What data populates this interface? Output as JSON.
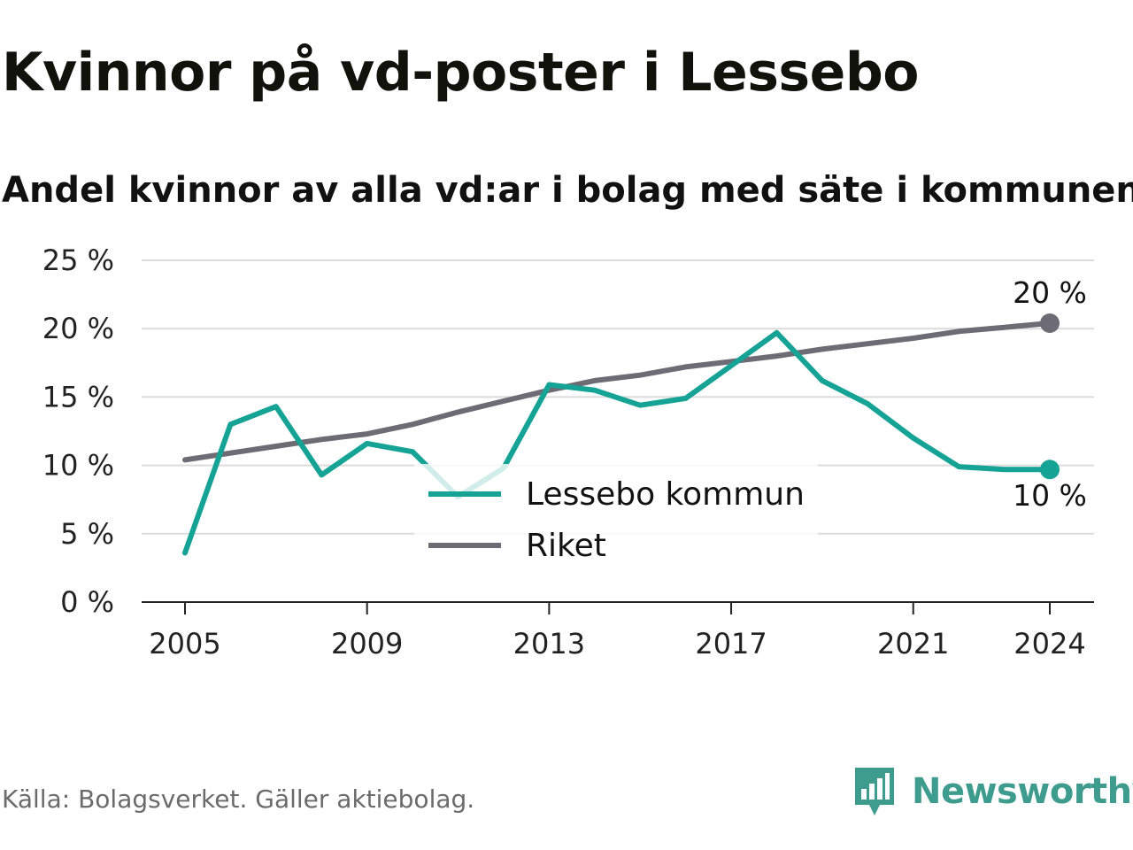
{
  "title": "Kvinnor på vd-poster i Lessebo",
  "subtitle": "Andel kvinnor av alla vd:ar i bolag med säte i kommunen",
  "source": "Källa: Bolagsverket. Gäller aktiebolag.",
  "brand": "Newsworthy",
  "chart_data": {
    "type": "line",
    "x": [
      2005,
      2006,
      2007,
      2008,
      2009,
      2010,
      2011,
      2012,
      2013,
      2014,
      2015,
      2016,
      2017,
      2018,
      2019,
      2020,
      2021,
      2022,
      2023,
      2024
    ],
    "x_ticks": [
      2005,
      2009,
      2013,
      2017,
      2021,
      2024
    ],
    "y_ticks": [
      0,
      5,
      10,
      15,
      20,
      25
    ],
    "y_tick_labels": [
      "0 %",
      "5 %",
      "10 %",
      "15 %",
      "20 %",
      "25 %"
    ],
    "ylim": [
      0,
      25
    ],
    "grid": true,
    "legend_position": "center",
    "series": [
      {
        "name": "Lessebo kommun",
        "color": "#14a394",
        "values": [
          3.6,
          13.0,
          14.3,
          9.3,
          11.6,
          11.0,
          7.7,
          9.8,
          15.9,
          15.5,
          14.4,
          14.9,
          17.3,
          19.7,
          16.2,
          14.5,
          12.0,
          9.9,
          9.7,
          9.7
        ],
        "end_label": "10 %"
      },
      {
        "name": "Riket",
        "color": "#6d6b73",
        "values": [
          10.4,
          10.9,
          11.4,
          11.9,
          12.3,
          13.0,
          13.9,
          14.7,
          15.5,
          16.2,
          16.6,
          17.2,
          17.6,
          18.0,
          18.5,
          18.9,
          19.3,
          19.8,
          20.1,
          20.4
        ],
        "end_label": "20 %"
      }
    ]
  }
}
